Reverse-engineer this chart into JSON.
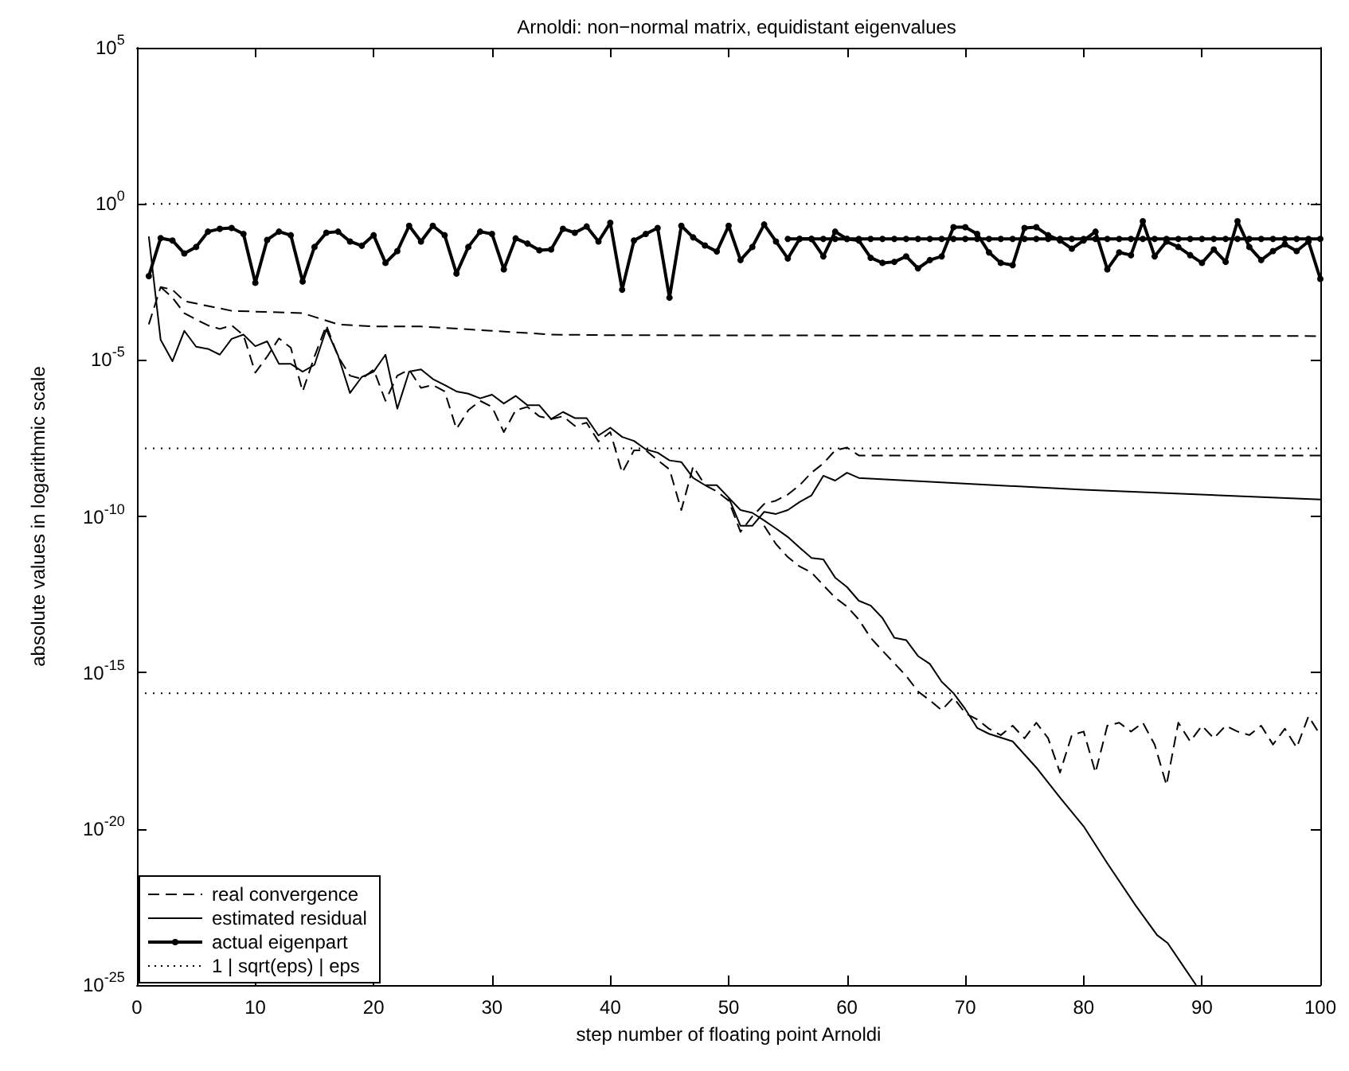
{
  "chart_data": {
    "type": "line",
    "title": "Arnoldi: non−normal matrix, equidistant eigenvalues",
    "xlabel": "step number of floating point Arnoldi",
    "ylabel": "absolute values in logarithmic scale",
    "x": [
      1,
      2,
      3,
      4,
      5,
      6,
      7,
      8,
      9,
      10,
      11,
      12,
      13,
      14,
      15,
      16,
      17,
      18,
      19,
      20,
      21,
      22,
      23,
      24,
      25,
      26,
      27,
      28,
      29,
      30,
      31,
      32,
      33,
      34,
      35,
      36,
      37,
      38,
      39,
      40,
      41,
      42,
      43,
      44,
      45,
      46,
      47,
      48,
      49,
      50,
      51,
      52,
      53,
      54,
      55,
      56,
      57,
      58,
      59,
      60,
      61,
      62,
      63,
      64,
      65,
      66,
      67,
      68,
      69,
      70,
      71,
      72,
      73,
      74,
      75,
      76,
      77,
      78,
      79,
      80,
      81,
      82,
      83,
      84,
      85,
      86,
      87,
      88,
      89,
      90,
      91,
      92,
      93,
      94,
      95,
      96,
      97,
      98,
      99,
      100
    ],
    "xlim": [
      0,
      100
    ],
    "xticks": [
      0,
      10,
      20,
      30,
      40,
      50,
      60,
      70,
      80,
      90,
      100
    ],
    "ylim": [
      1e-25,
      100000
    ],
    "yticks": [
      {
        "value": 1e-25,
        "label": "10$^{-25}$"
      },
      {
        "value": 1e-20,
        "label": "10$^{-20}$"
      },
      {
        "value": 1e-15,
        "label": "10$^{-15}$"
      },
      {
        "value": 1e-10,
        "label": "10$^{-10}$"
      },
      {
        "value": 1e-05,
        "label": "10$^{-5}$"
      },
      {
        "value": 1,
        "label": "10$^{0}$"
      },
      {
        "value": 100000,
        "label": "10$^{5}$"
      }
    ],
    "log": "y",
    "grid": false,
    "legend": "bottom left",
    "series": [
      {
        "name": "real convergence",
        "color": "#000000",
        "line_style": "dashed",
        "marker": "none",
        "x": [
          1,
          2,
          3,
          4,
          8,
          14,
          17,
          20,
          24,
          30,
          35,
          40,
          100
        ],
        "values": [
          0.00014,
          0.0022,
          0.0018,
          0.00078,
          0.00038,
          0.00032,
          0.00014,
          0.00012,
          0.00012,
          8.7e-05,
          6.6e-05,
          6.3e-05,
          5.9e-05
        ]
      },
      {
        "color": "#000000",
        "line_style": "dashed",
        "marker": "none",
        "x": [
          2,
          3,
          4,
          5,
          6,
          7,
          8,
          9,
          10,
          11,
          12,
          13,
          14,
          15,
          16,
          17,
          18,
          19,
          20,
          21,
          22,
          23,
          24,
          25,
          26,
          27,
          28,
          29,
          30,
          31,
          32,
          33,
          34,
          35,
          36,
          37,
          38,
          39,
          40,
          41,
          42,
          43,
          44,
          45,
          46,
          47,
          48,
          49,
          50,
          51,
          52,
          53,
          54,
          55,
          56,
          57,
          58,
          59,
          60,
          61,
          100
        ],
        "values": [
          0.0022,
          0.001,
          0.00032,
          0.0002,
          0.00013,
          0.0001,
          0.00013,
          6.3e-05,
          4e-06,
          1.3e-05,
          5e-05,
          2.5e-05,
          1e-06,
          1.3e-05,
          0.00013,
          1.3e-05,
          3.2e-06,
          2.5e-06,
          5e-06,
          5e-07,
          3.2e-06,
          5e-06,
          1.3e-06,
          1.6e-06,
          1e-06,
          6.3e-08,
          2.5e-07,
          5e-07,
          3.2e-07,
          5e-08,
          2.5e-07,
          3.2e-07,
          1.6e-07,
          1.3e-07,
          1.6e-07,
          7.9e-08,
          1e-07,
          2.5e-08,
          5e-08,
          2.5e-09,
          1.3e-08,
          1.3e-08,
          6.3e-09,
          3.2e-09,
          1.6e-10,
          4e-09,
          1e-09,
          6.3e-10,
          3.2e-10,
          3.2e-11,
          1e-10,
          2.5e-10,
          3.2e-10,
          5e-10,
          1e-09,
          2.5e-09,
          5e-09,
          1.3e-08,
          1.6e-08,
          8.9e-09,
          8.9e-09
        ]
      },
      {
        "color": "#000000",
        "line_style": "dashed",
        "marker": "none",
        "x": [
          53,
          54,
          55,
          56,
          57,
          58,
          59,
          60,
          61,
          62,
          63,
          64,
          65,
          66,
          67,
          68,
          69,
          70,
          71,
          72,
          73,
          74,
          75,
          76,
          77,
          78,
          79,
          80,
          81,
          82,
          83,
          84,
          85,
          86,
          87,
          88,
          89,
          90,
          91,
          92,
          93,
          94,
          95,
          96,
          97,
          98,
          99,
          100
        ],
        "values": [
          5e-11,
          1.3e-11,
          5e-12,
          2.5e-12,
          1.6e-12,
          6.3e-13,
          2.5e-13,
          1.3e-13,
          5e-14,
          1.3e-14,
          5e-15,
          2e-15,
          7.9e-16,
          2.5e-16,
          1.3e-16,
          6.3e-17,
          1.6e-16,
          5e-17,
          3.2e-17,
          1.6e-17,
          1e-17,
          2e-17,
          7.9e-18,
          2.5e-17,
          7.9e-18,
          6.3e-19,
          1e-17,
          1.3e-17,
          6.3e-19,
          2e-17,
          2.5e-17,
          1.3e-17,
          2.5e-17,
          5e-18,
          2.5e-19,
          2.5e-17,
          6.3e-18,
          2e-17,
          7.9e-18,
          2e-17,
          1.3e-17,
          1e-17,
          2e-17,
          5e-18,
          1.6e-17,
          4e-18,
          4e-17,
          1e-17
        ]
      },
      {
        "name": "estimated residual",
        "color": "#000000",
        "line_style": "solid",
        "marker": "none",
        "x": [
          1,
          2,
          3,
          4,
          5,
          6,
          7,
          8,
          9,
          10,
          11,
          12,
          13,
          14,
          15,
          16,
          17,
          18,
          19,
          20,
          21,
          22,
          23,
          24,
          25,
          26,
          27,
          28,
          29,
          30,
          31,
          32,
          33,
          34,
          35,
          36,
          37,
          38,
          39,
          40,
          41,
          42,
          43,
          44,
          45,
          46,
          47,
          48,
          49,
          50,
          51,
          52,
          53,
          54,
          55,
          56,
          57,
          58,
          59,
          60,
          61,
          62,
          63,
          64,
          65,
          66,
          67,
          68,
          69,
          70,
          71,
          72,
          74,
          76,
          78,
          80,
          82,
          84.4,
          86.2,
          87.1,
          88.3,
          89.5
        ],
        "values": [
          0.091,
          4.5e-05,
          9.3e-06,
          8.7e-05,
          2.7e-05,
          2.3e-05,
          1.5e-05,
          4.8e-05,
          6.6e-05,
          2.8e-05,
          4e-05,
          7.6e-06,
          7.6e-06,
          4.3e-06,
          7.1e-06,
          9.8e-05,
          1.4e-05,
          8.9e-07,
          2.9e-06,
          4.3e-06,
          1.5e-05,
          2.8e-07,
          4.3e-06,
          5.1e-06,
          2.5e-06,
          1.6e-06,
          1e-06,
          8.5e-07,
          6e-07,
          7.9e-07,
          4.1e-07,
          7.2e-07,
          3.6e-07,
          3.6e-07,
          1.3e-07,
          2.2e-07,
          1.4e-07,
          1.4e-07,
          3.9e-08,
          6.9e-08,
          3.5e-08,
          2.6e-08,
          1.4e-08,
          1.1e-08,
          6.2e-09,
          5.5e-09,
          1.7e-09,
          1e-09,
          1e-09,
          4e-10,
          1.6e-10,
          1.3e-10,
          7.4e-11,
          4.1e-11,
          2.2e-11,
          1e-11,
          4.7e-12,
          4.2e-12,
          1.1e-12,
          5.5e-13,
          2e-13,
          1.4e-13,
          5.6e-14,
          1.3e-14,
          1.1e-14,
          3.4e-15,
          1.9e-15,
          5.1e-16,
          2.2e-16,
          6.8e-17,
          1.7e-17,
          1.1e-17,
          6.3e-18,
          9.1e-19,
          1e-19,
          1.2e-20,
          7.9e-22,
          3.5e-23,
          4e-24,
          2.2e-24,
          4.7e-25,
          1e-25
        ]
      },
      {
        "color": "#000000",
        "line_style": "solid",
        "marker": "none",
        "x": [
          50,
          51,
          52,
          53,
          54,
          55,
          56,
          57,
          58,
          59,
          60,
          61,
          80,
          100
        ],
        "values": [
          4e-10,
          5e-11,
          5e-11,
          1.4e-10,
          1.2e-10,
          1.6e-10,
          2.9e-10,
          4.7e-10,
          2e-09,
          1.4e-09,
          2.5e-09,
          1.7e-09,
          7.1e-10,
          3.5e-10
        ]
      },
      {
        "name": "actual eigenpart",
        "color": "#000000",
        "line_style": "solid",
        "marker": "circle",
        "values": [
          0.0049,
          0.081,
          0.068,
          0.026,
          0.042,
          0.13,
          0.16,
          0.17,
          0.11,
          0.003,
          0.071,
          0.13,
          0.1,
          0.0033,
          0.042,
          0.12,
          0.13,
          0.063,
          0.046,
          0.1,
          0.013,
          0.031,
          0.2,
          0.063,
          0.2,
          0.1,
          0.0059,
          0.042,
          0.13,
          0.11,
          0.0081,
          0.079,
          0.054,
          0.033,
          0.035,
          0.16,
          0.12,
          0.19,
          0.063,
          0.25,
          0.0018,
          0.068,
          0.11,
          0.17,
          0.001,
          0.2,
          0.085,
          0.047,
          0.03,
          0.2,
          0.016,
          0.042,
          0.22,
          0.063,
          0.018,
          0.076,
          0.076,
          0.021,
          0.13,
          0.076,
          0.068,
          0.019,
          0.013,
          0.014,
          0.021,
          0.0087,
          0.016,
          0.021,
          0.18,
          0.18,
          0.11,
          0.028,
          0.013,
          0.011,
          0.17,
          0.18,
          0.1,
          0.068,
          0.037,
          0.068,
          0.13,
          0.0081,
          0.028,
          0.023,
          0.28,
          0.021,
          0.063,
          0.042,
          0.023,
          0.013,
          0.035,
          0.014,
          0.28,
          0.042,
          0.016,
          0.031,
          0.051,
          0.031,
          0.063,
          0.004
        ]
      },
      {
        "color": "#000000",
        "line_style": "solid",
        "marker": "circle",
        "x": [
          55,
          56,
          57,
          58,
          59,
          60,
          61,
          62,
          63,
          64,
          65,
          66,
          67,
          68,
          69,
          70,
          71,
          72,
          73,
          74,
          75,
          76,
          77,
          78,
          79,
          80,
          81,
          82,
          83,
          84,
          85,
          86,
          87,
          88,
          89,
          90,
          91,
          92,
          93,
          94,
          95,
          96,
          97,
          98,
          99,
          100
        ],
        "values": [
          0.076,
          0.076,
          0.076,
          0.076,
          0.076,
          0.076,
          0.076,
          0.076,
          0.076,
          0.076,
          0.076,
          0.076,
          0.076,
          0.076,
          0.076,
          0.076,
          0.076,
          0.076,
          0.076,
          0.076,
          0.076,
          0.076,
          0.076,
          0.076,
          0.076,
          0.076,
          0.076,
          0.076,
          0.076,
          0.076,
          0.076,
          0.076,
          0.076,
          0.076,
          0.076,
          0.076,
          0.076,
          0.076,
          0.076,
          0.076,
          0.076,
          0.076,
          0.076,
          0.076,
          0.076,
          0.076
        ]
      },
      {
        "name": "1 | sqrt(eps) | eps",
        "color": "#000000",
        "line_style": "dotted",
        "marker": "none",
        "x": [
          0,
          100
        ],
        "values": [
          1,
          1
        ]
      },
      {
        "color": "#000000",
        "line_style": "dotted",
        "marker": "none",
        "x": [
          0,
          100
        ],
        "values": [
          1.5e-08,
          1.5e-08
        ]
      },
      {
        "color": "#000000",
        "line_style": "dotted",
        "marker": "none",
        "x": [
          0,
          100
        ],
        "values": [
          2.2e-16,
          2.2e-16
        ]
      }
    ]
  }
}
